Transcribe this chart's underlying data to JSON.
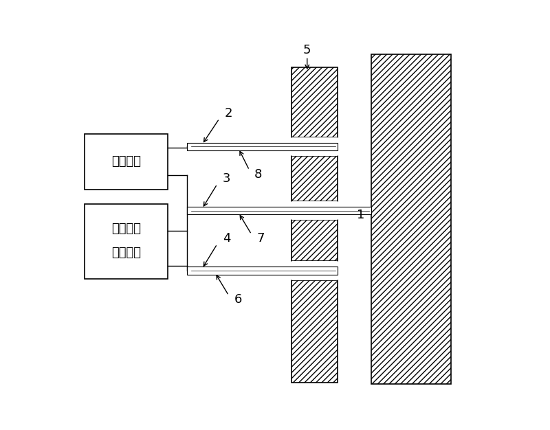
{
  "bg_color": "#ffffff",
  "fig_width": 8.0,
  "fig_height": 6.26,
  "dpi": 100,
  "box1_label": "微处理器",
  "box2_line1": "激光热脉",
  "box2_line2": "冲发生器",
  "label1": "1",
  "label2": "2",
  "label3": "3",
  "label4": "4",
  "label5": "5",
  "label6": "6",
  "label7": "7",
  "label8": "8",
  "hatch_pattern": "////",
  "line_color": "#000000"
}
